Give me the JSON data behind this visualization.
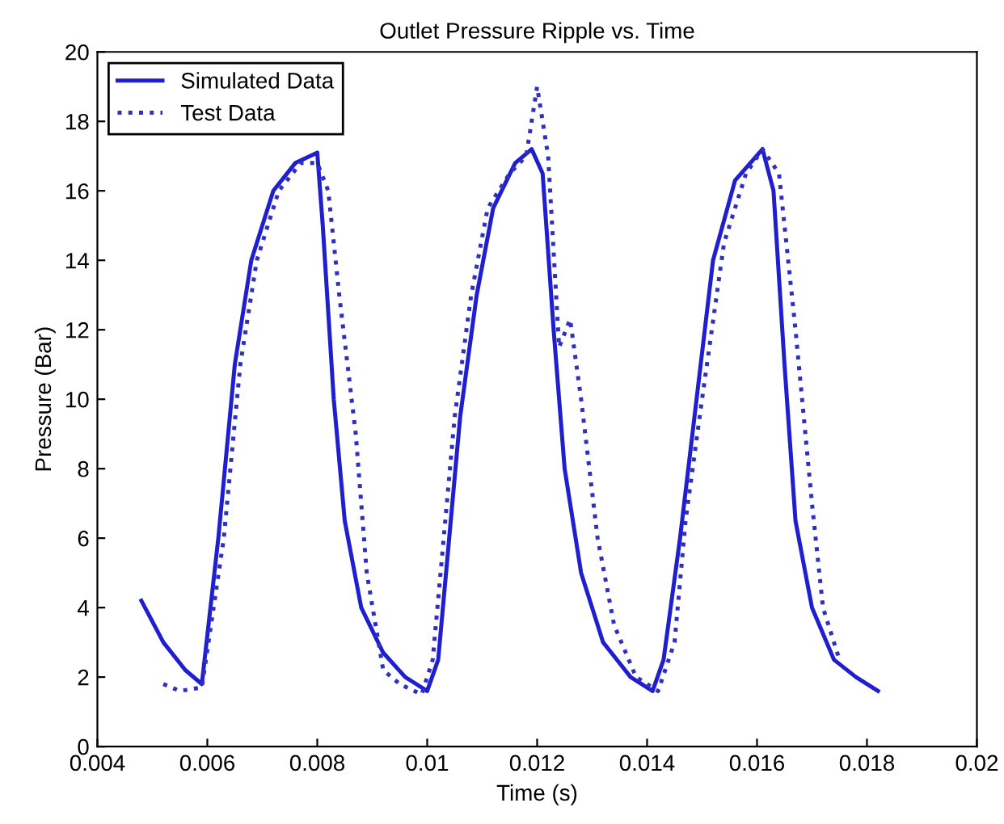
{
  "chart_data": {
    "type": "line",
    "title": "Outlet Pressure Ripple vs. Time",
    "xlabel": "Time (s)",
    "ylabel": "Pressure (Bar)",
    "xlim": [
      0.004,
      0.02
    ],
    "xticks": [
      0.004,
      0.006,
      0.008,
      0.01,
      0.012,
      0.014,
      0.016,
      0.018,
      0.02
    ],
    "ylim": [
      0,
      20
    ],
    "yticks": [
      0,
      2,
      4,
      6,
      8,
      10,
      12,
      14,
      16,
      18,
      20
    ],
    "grid": false,
    "legend": "top left",
    "series": [
      {
        "name": "Simulated Data",
        "color": "#1f1fd0",
        "line_style": "solid",
        "x": [
          0.0048,
          0.0052,
          0.0056,
          0.0059,
          0.0062,
          0.0065,
          0.0068,
          0.0072,
          0.0076,
          0.008,
          0.0081,
          0.0083,
          0.0085,
          0.0088,
          0.0092,
          0.0096,
          0.01,
          0.0102,
          0.0104,
          0.0106,
          0.0109,
          0.0112,
          0.0116,
          0.0119,
          0.0121,
          0.0123,
          0.0125,
          0.0128,
          0.0132,
          0.0137,
          0.0141,
          0.0143,
          0.0146,
          0.0149,
          0.0152,
          0.0156,
          0.0161,
          0.0163,
          0.0165,
          0.0167,
          0.017,
          0.0174,
          0.0178,
          0.0182
        ],
        "values": [
          4.2,
          3.0,
          2.2,
          1.8,
          6,
          11,
          14,
          16,
          16.8,
          17.1,
          15,
          10,
          6.5,
          4,
          2.7,
          2.0,
          1.6,
          2.5,
          6,
          9.5,
          13,
          15.5,
          16.8,
          17.2,
          16.5,
          12,
          8,
          5,
          3,
          2,
          1.6,
          2.5,
          6,
          10,
          14,
          16.3,
          17.2,
          16,
          11,
          6.5,
          4,
          2.5,
          2.0,
          1.6
        ]
      },
      {
        "name": "Test Data",
        "color": "#3030c0",
        "line_style": "dotted",
        "x": [
          0.0052,
          0.0055,
          0.0059,
          0.0063,
          0.0066,
          0.0069,
          0.0073,
          0.0077,
          0.008,
          0.0082,
          0.0084,
          0.0087,
          0.0089,
          0.0092,
          0.0095,
          0.0099,
          0.0101,
          0.0103,
          0.0105,
          0.0108,
          0.0111,
          0.0115,
          0.0118,
          0.012,
          0.0122,
          0.0124,
          0.0126,
          0.0128,
          0.0131,
          0.0134,
          0.0138,
          0.0142,
          0.0145,
          0.0147,
          0.015,
          0.0154,
          0.0158,
          0.0161,
          0.0164,
          0.0167,
          0.017,
          0.0172,
          0.0175
        ],
        "values": [
          1.8,
          1.6,
          1.7,
          6,
          11,
          14,
          16,
          16.8,
          16.8,
          16,
          13,
          9,
          5,
          2.2,
          1.8,
          1.5,
          2.5,
          6,
          9.5,
          13,
          15.5,
          16.5,
          17,
          19.0,
          17,
          11.5,
          12.3,
          10,
          6,
          3.5,
          2,
          1.6,
          3,
          6.5,
          10,
          14.5,
          16.5,
          17.2,
          16.5,
          12,
          7,
          4,
          2.5
        ]
      }
    ]
  }
}
